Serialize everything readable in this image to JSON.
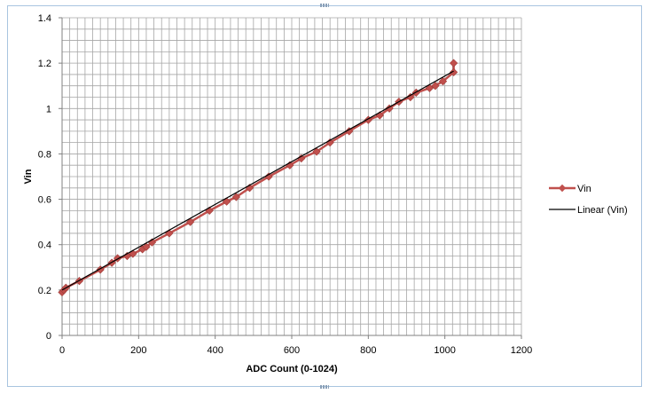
{
  "chart_data": {
    "type": "scatter",
    "xlabel": "ADC Count (0-1024)",
    "ylabel": "Vin",
    "xlim": [
      0,
      1200
    ],
    "ylim": [
      0,
      1.4
    ],
    "x_ticks": [
      "0",
      "200",
      "400",
      "600",
      "800",
      "1000",
      "1200"
    ],
    "y_ticks": [
      "0",
      "0.2",
      "0.4",
      "0.6",
      "0.8",
      "1",
      "1.2",
      "1.4"
    ],
    "x_minor_step": 20,
    "y_minor_step": 0.05,
    "grid": true,
    "legend_position": "right",
    "series": [
      {
        "name": "Vin",
        "color": "#c0504d",
        "marker": "diamond",
        "x": [
          0,
          5,
          10,
          45,
          100,
          130,
          145,
          170,
          185,
          210,
          220,
          235,
          280,
          335,
          385,
          430,
          455,
          490,
          540,
          595,
          625,
          665,
          700,
          750,
          800,
          830,
          855,
          880,
          910,
          925,
          960,
          975,
          995,
          1023,
          1023
        ],
        "y": [
          0.19,
          0.2,
          0.21,
          0.24,
          0.29,
          0.32,
          0.34,
          0.35,
          0.36,
          0.38,
          0.39,
          0.41,
          0.45,
          0.5,
          0.55,
          0.59,
          0.61,
          0.65,
          0.7,
          0.75,
          0.78,
          0.81,
          0.85,
          0.9,
          0.95,
          0.97,
          1.0,
          1.03,
          1.05,
          1.07,
          1.09,
          1.1,
          1.12,
          1.16,
          1.2
        ]
      },
      {
        "name": "Linear (Vin)",
        "color": "#000000",
        "marker": "none",
        "x": [
          0,
          1023
        ],
        "y": [
          0.2,
          1.165
        ]
      }
    ]
  }
}
